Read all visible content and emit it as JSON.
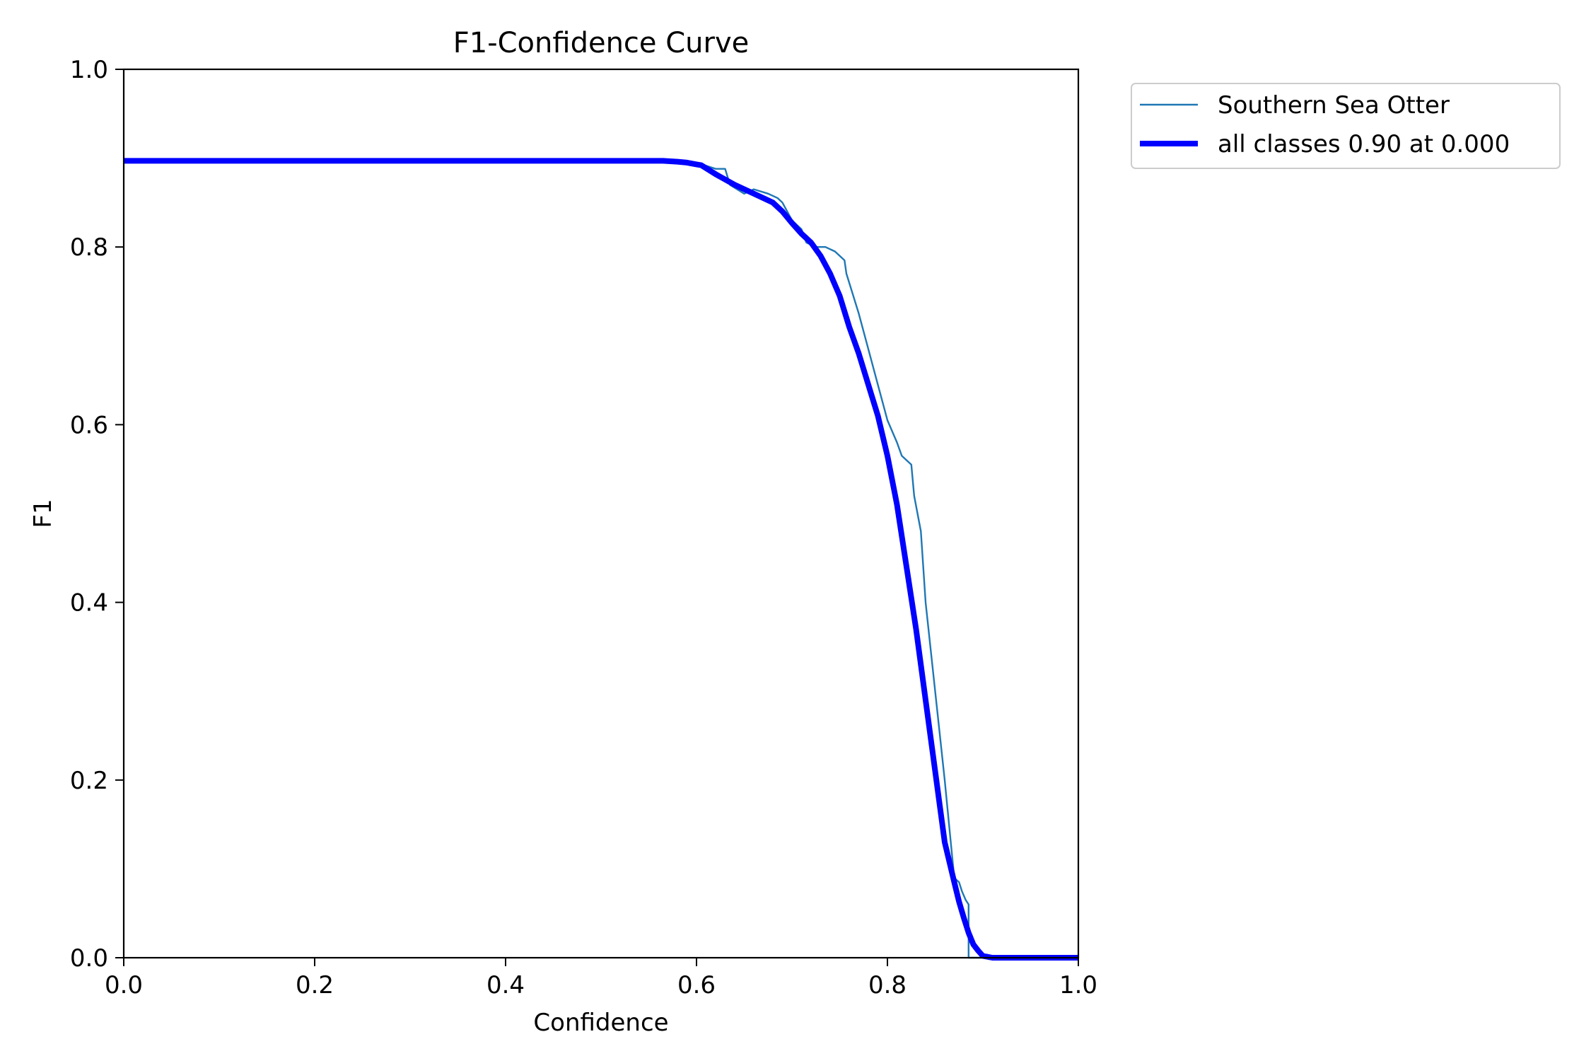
{
  "chart_data": {
    "type": "line",
    "title": "F1-Confidence Curve",
    "xlabel": "Confidence",
    "ylabel": "F1",
    "xlim": [
      0.0,
      1.0
    ],
    "ylim": [
      0.0,
      1.0
    ],
    "xticks": [
      "0.0",
      "0.2",
      "0.4",
      "0.6",
      "0.8",
      "1.0"
    ],
    "yticks": [
      "0.0",
      "0.2",
      "0.4",
      "0.6",
      "0.8",
      "1.0"
    ],
    "grid": false,
    "legend_position": "outside-top-right",
    "series": [
      {
        "name": "Southern Sea Otter",
        "color": "#1f77b4",
        "style": "thin",
        "x": [
          0.0,
          0.55,
          0.6,
          0.62,
          0.63,
          0.635,
          0.65,
          0.66,
          0.675,
          0.685,
          0.69,
          0.7,
          0.71,
          0.715,
          0.725,
          0.735,
          0.745,
          0.755,
          0.757,
          0.77,
          0.78,
          0.79,
          0.8,
          0.81,
          0.815,
          0.82,
          0.825,
          0.828,
          0.835,
          0.84,
          0.85,
          0.86,
          0.87,
          0.875,
          0.878,
          0.882,
          0.885,
          0.885,
          0.9,
          1.0
        ],
        "y": [
          0.897,
          0.897,
          0.895,
          0.888,
          0.888,
          0.87,
          0.86,
          0.865,
          0.86,
          0.855,
          0.85,
          0.83,
          0.82,
          0.805,
          0.8,
          0.8,
          0.795,
          0.785,
          0.77,
          0.725,
          0.685,
          0.645,
          0.605,
          0.58,
          0.565,
          0.56,
          0.555,
          0.52,
          0.48,
          0.4,
          0.3,
          0.2,
          0.09,
          0.085,
          0.075,
          0.065,
          0.06,
          0.0,
          0.0,
          0.0
        ]
      },
      {
        "name": "all classes 0.90 at 0.000",
        "color": "#0000ff",
        "style": "thick",
        "x": [
          0.0,
          0.565,
          0.58,
          0.59,
          0.6,
          0.605,
          0.62,
          0.64,
          0.66,
          0.68,
          0.69,
          0.7,
          0.71,
          0.72,
          0.73,
          0.74,
          0.75,
          0.76,
          0.77,
          0.78,
          0.79,
          0.8,
          0.81,
          0.82,
          0.83,
          0.84,
          0.85,
          0.86,
          0.87,
          0.875,
          0.88,
          0.885,
          0.89,
          0.895,
          0.9,
          0.91,
          1.0
        ],
        "y": [
          0.897,
          0.897,
          0.896,
          0.895,
          0.893,
          0.892,
          0.882,
          0.87,
          0.86,
          0.85,
          0.84,
          0.827,
          0.815,
          0.805,
          0.79,
          0.77,
          0.745,
          0.71,
          0.68,
          0.645,
          0.61,
          0.565,
          0.51,
          0.44,
          0.37,
          0.29,
          0.21,
          0.13,
          0.085,
          0.063,
          0.045,
          0.028,
          0.015,
          0.008,
          0.002,
          0.0,
          0.0
        ]
      }
    ]
  }
}
